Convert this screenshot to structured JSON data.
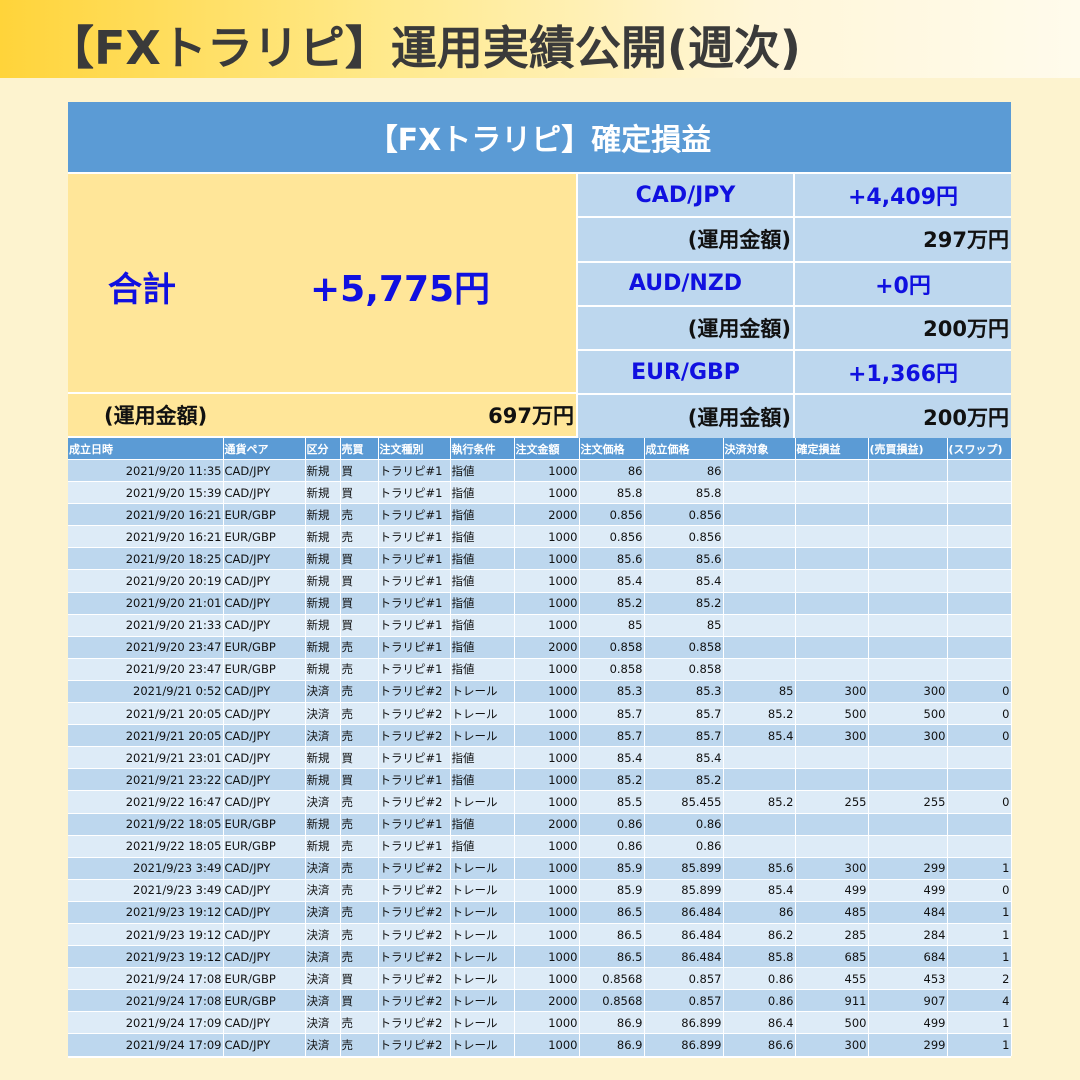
{
  "header": {
    "title": "【FXトラリピ】運用実績公開(週次)"
  },
  "summary": {
    "banner": "【FXトラリピ】確定損益",
    "total_label": "合計",
    "total_value": "+5,775円",
    "total_capital_label": "(運用金額)",
    "total_capital_value": "697万円",
    "pairs": [
      {
        "name": "CAD/JPY",
        "pnl": "+4,409円",
        "capital_label": "(運用金額)",
        "capital": "297万円"
      },
      {
        "name": "AUD/NZD",
        "pnl": "+0円",
        "capital_label": "(運用金額)",
        "capital": "200万円"
      },
      {
        "name": "EUR/GBP",
        "pnl": "+1,366円",
        "capital_label": "(運用金額)",
        "capital": "200万円"
      }
    ]
  },
  "table": {
    "headers": [
      "成立日時",
      "通貨ペア",
      "区分",
      "売買",
      "注文種別",
      "執行条件",
      "注文金額",
      "注文価格",
      "成立価格",
      "決済対象",
      "確定損益",
      "(売買損益)",
      "(スワップ)"
    ],
    "rows": [
      [
        "2021/9/20 11:35",
        "CAD/JPY",
        "新規",
        "買",
        "トラリピ#1",
        "指値",
        "1000",
        "86",
        "86",
        "",
        "",
        "",
        ""
      ],
      [
        "2021/9/20 15:39",
        "CAD/JPY",
        "新規",
        "買",
        "トラリピ#1",
        "指値",
        "1000",
        "85.8",
        "85.8",
        "",
        "",
        "",
        ""
      ],
      [
        "2021/9/20 16:21",
        "EUR/GBP",
        "新規",
        "売",
        "トラリピ#1",
        "指値",
        "2000",
        "0.856",
        "0.856",
        "",
        "",
        "",
        ""
      ],
      [
        "2021/9/20 16:21",
        "EUR/GBP",
        "新規",
        "売",
        "トラリピ#1",
        "指値",
        "1000",
        "0.856",
        "0.856",
        "",
        "",
        "",
        ""
      ],
      [
        "2021/9/20 18:25",
        "CAD/JPY",
        "新規",
        "買",
        "トラリピ#1",
        "指値",
        "1000",
        "85.6",
        "85.6",
        "",
        "",
        "",
        ""
      ],
      [
        "2021/9/20 20:19",
        "CAD/JPY",
        "新規",
        "買",
        "トラリピ#1",
        "指値",
        "1000",
        "85.4",
        "85.4",
        "",
        "",
        "",
        ""
      ],
      [
        "2021/9/20 21:01",
        "CAD/JPY",
        "新規",
        "買",
        "トラリピ#1",
        "指値",
        "1000",
        "85.2",
        "85.2",
        "",
        "",
        "",
        ""
      ],
      [
        "2021/9/20 21:33",
        "CAD/JPY",
        "新規",
        "買",
        "トラリピ#1",
        "指値",
        "1000",
        "85",
        "85",
        "",
        "",
        "",
        ""
      ],
      [
        "2021/9/20 23:47",
        "EUR/GBP",
        "新規",
        "売",
        "トラリピ#1",
        "指値",
        "2000",
        "0.858",
        "0.858",
        "",
        "",
        "",
        ""
      ],
      [
        "2021/9/20 23:47",
        "EUR/GBP",
        "新規",
        "売",
        "トラリピ#1",
        "指値",
        "1000",
        "0.858",
        "0.858",
        "",
        "",
        "",
        ""
      ],
      [
        "2021/9/21 0:52",
        "CAD/JPY",
        "決済",
        "売",
        "トラリピ#2",
        "トレール",
        "1000",
        "85.3",
        "85.3",
        "85",
        "300",
        "300",
        "0"
      ],
      [
        "2021/9/21 20:05",
        "CAD/JPY",
        "決済",
        "売",
        "トラリピ#2",
        "トレール",
        "1000",
        "85.7",
        "85.7",
        "85.2",
        "500",
        "500",
        "0"
      ],
      [
        "2021/9/21 20:05",
        "CAD/JPY",
        "決済",
        "売",
        "トラリピ#2",
        "トレール",
        "1000",
        "85.7",
        "85.7",
        "85.4",
        "300",
        "300",
        "0"
      ],
      [
        "2021/9/21 23:01",
        "CAD/JPY",
        "新規",
        "買",
        "トラリピ#1",
        "指値",
        "1000",
        "85.4",
        "85.4",
        "",
        "",
        "",
        ""
      ],
      [
        "2021/9/21 23:22",
        "CAD/JPY",
        "新規",
        "買",
        "トラリピ#1",
        "指値",
        "1000",
        "85.2",
        "85.2",
        "",
        "",
        "",
        ""
      ],
      [
        "2021/9/22 16:47",
        "CAD/JPY",
        "決済",
        "売",
        "トラリピ#2",
        "トレール",
        "1000",
        "85.5",
        "85.455",
        "85.2",
        "255",
        "255",
        "0"
      ],
      [
        "2021/9/22 18:05",
        "EUR/GBP",
        "新規",
        "売",
        "トラリピ#1",
        "指値",
        "2000",
        "0.86",
        "0.86",
        "",
        "",
        "",
        ""
      ],
      [
        "2021/9/22 18:05",
        "EUR/GBP",
        "新規",
        "売",
        "トラリピ#1",
        "指値",
        "1000",
        "0.86",
        "0.86",
        "",
        "",
        "",
        ""
      ],
      [
        "2021/9/23 3:49",
        "CAD/JPY",
        "決済",
        "売",
        "トラリピ#2",
        "トレール",
        "1000",
        "85.9",
        "85.899",
        "85.6",
        "300",
        "299",
        "1"
      ],
      [
        "2021/9/23 3:49",
        "CAD/JPY",
        "決済",
        "売",
        "トラリピ#2",
        "トレール",
        "1000",
        "85.9",
        "85.899",
        "85.4",
        "499",
        "499",
        "0"
      ],
      [
        "2021/9/23 19:12",
        "CAD/JPY",
        "決済",
        "売",
        "トラリピ#2",
        "トレール",
        "1000",
        "86.5",
        "86.484",
        "86",
        "485",
        "484",
        "1"
      ],
      [
        "2021/9/23 19:12",
        "CAD/JPY",
        "決済",
        "売",
        "トラリピ#2",
        "トレール",
        "1000",
        "86.5",
        "86.484",
        "86.2",
        "285",
        "284",
        "1"
      ],
      [
        "2021/9/23 19:12",
        "CAD/JPY",
        "決済",
        "売",
        "トラリピ#2",
        "トレール",
        "1000",
        "86.5",
        "86.484",
        "85.8",
        "685",
        "684",
        "1"
      ],
      [
        "2021/9/24 17:08",
        "EUR/GBP",
        "決済",
        "買",
        "トラリピ#2",
        "トレール",
        "1000",
        "0.8568",
        "0.857",
        "0.86",
        "455",
        "453",
        "2"
      ],
      [
        "2021/9/24 17:08",
        "EUR/GBP",
        "決済",
        "買",
        "トラリピ#2",
        "トレール",
        "2000",
        "0.8568",
        "0.857",
        "0.86",
        "911",
        "907",
        "4"
      ],
      [
        "2021/9/24 17:09",
        "CAD/JPY",
        "決済",
        "売",
        "トラリピ#2",
        "トレール",
        "1000",
        "86.9",
        "86.899",
        "86.4",
        "500",
        "499",
        "1"
      ],
      [
        "2021/9/24 17:09",
        "CAD/JPY",
        "決済",
        "売",
        "トラリピ#2",
        "トレール",
        "1000",
        "86.9",
        "86.899",
        "86.6",
        "300",
        "299",
        "1"
      ]
    ]
  }
}
